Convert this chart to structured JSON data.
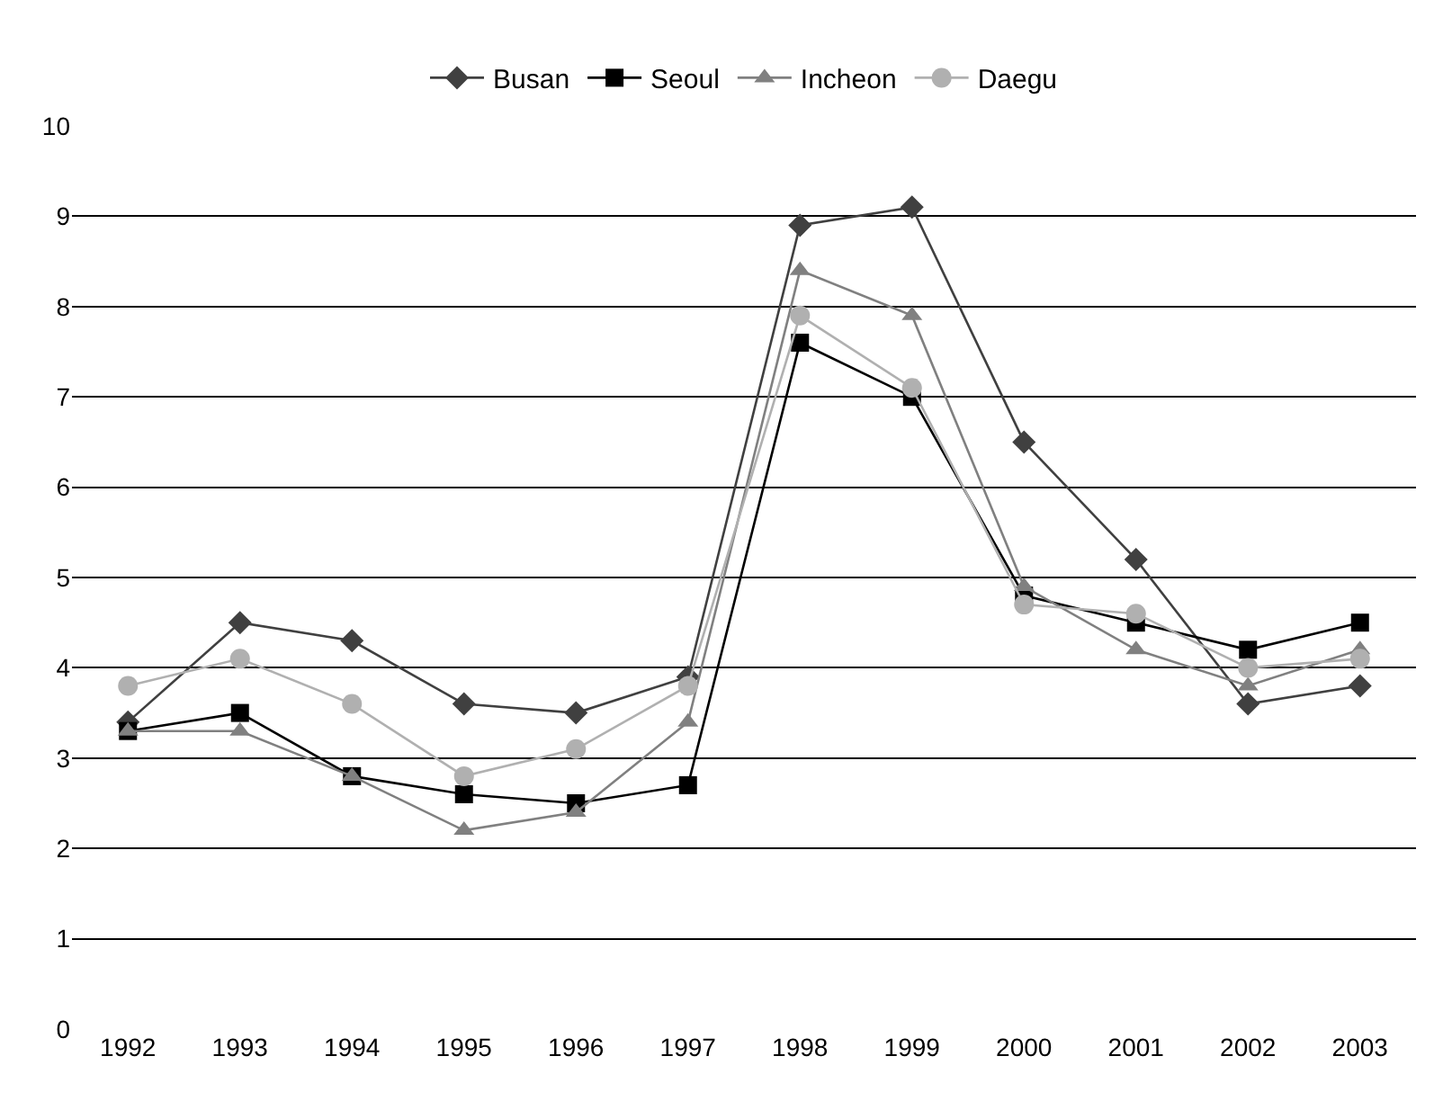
{
  "chart_data": {
    "type": "line",
    "categories": [
      "1992",
      "1993",
      "1994",
      "1995",
      "1996",
      "1997",
      "1998",
      "1999",
      "2000",
      "2001",
      "2002",
      "2003"
    ],
    "series": [
      {
        "name": "Busan",
        "color": "#404040",
        "marker": "diamond",
        "values": [
          3.4,
          4.5,
          4.3,
          3.6,
          3.5,
          3.9,
          8.9,
          9.1,
          6.5,
          5.2,
          3.6,
          3.8
        ]
      },
      {
        "name": "Seoul",
        "color": "#000000",
        "marker": "square",
        "values": [
          3.3,
          3.5,
          2.8,
          2.6,
          2.5,
          2.7,
          7.6,
          7.0,
          4.8,
          4.5,
          4.2,
          4.5
        ]
      },
      {
        "name": "Incheon",
        "color": "#808080",
        "marker": "triangle",
        "values": [
          3.3,
          3.3,
          2.8,
          2.2,
          2.4,
          3.4,
          8.4,
          7.9,
          4.9,
          4.2,
          3.8,
          4.2
        ]
      },
      {
        "name": "Daegu",
        "color": "#b0b0b0",
        "marker": "circle",
        "values": [
          3.8,
          4.1,
          3.6,
          2.8,
          3.1,
          3.8,
          7.9,
          7.1,
          4.7,
          4.6,
          4.0,
          4.1
        ]
      }
    ],
    "ylim": [
      0,
      10
    ],
    "yticks": [
      0,
      1,
      2,
      3,
      4,
      5,
      6,
      7,
      8,
      9,
      10
    ],
    "grid": "y",
    "legend": "top"
  }
}
